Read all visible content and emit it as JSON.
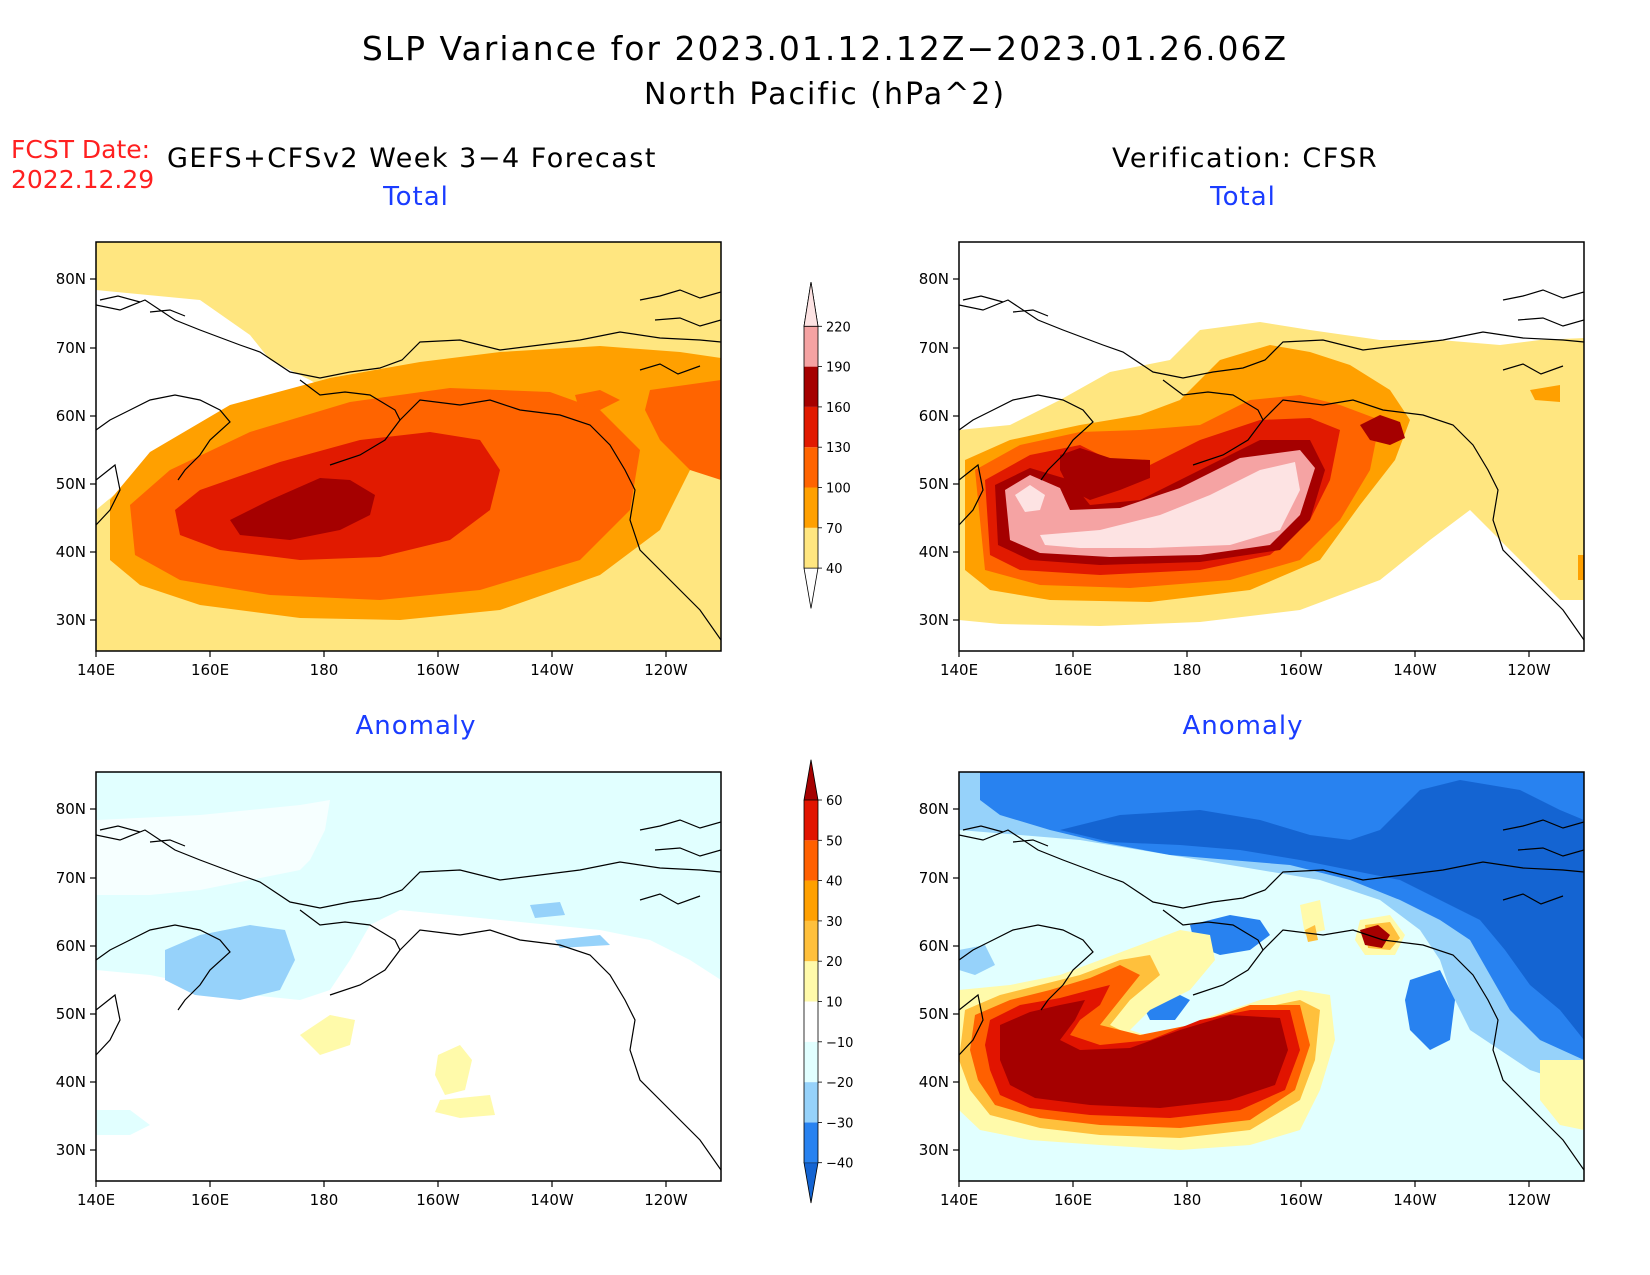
{
  "title": "SLP Variance for 2023.01.12.12Z−2023.01.26.06Z",
  "subtitle": "North Pacific (hPa^2)",
  "fcst": {
    "label": "FCST Date:",
    "date": "2022.12.29"
  },
  "columns": {
    "left": "GEFS+CFSv2 Week 3−4 Forecast",
    "right": "Verification: CFSR"
  },
  "panels": {
    "total": "Total",
    "anomaly": "Anomaly"
  },
  "axes": {
    "lon_labels": [
      "140E",
      "160E",
      "180",
      "160W",
      "140W",
      "120W"
    ],
    "lat_labels": [
      "30N",
      "40N",
      "50N",
      "60N",
      "70N",
      "80N"
    ]
  },
  "colorbars": {
    "total": {
      "levels": [
        "40",
        "70",
        "100",
        "130",
        "160",
        "190",
        "220"
      ],
      "colors": [
        "#ffe680",
        "#ffa000",
        "#ff6400",
        "#e11a00",
        "#a50000",
        "#f5a3a3",
        "#fde3e3"
      ]
    },
    "anomaly": {
      "levels": [
        "−40",
        "−30",
        "−20",
        "−10",
        "10",
        "20",
        "30",
        "40",
        "50",
        "60"
      ],
      "colors": [
        "#1464d2",
        "#2882f0",
        "#96d2fa",
        "#e1ffff",
        "#ffffff",
        "#fffaaa",
        "#ffc03c",
        "#ffa000",
        "#ff6000",
        "#e11400",
        "#a50000"
      ]
    }
  }
}
